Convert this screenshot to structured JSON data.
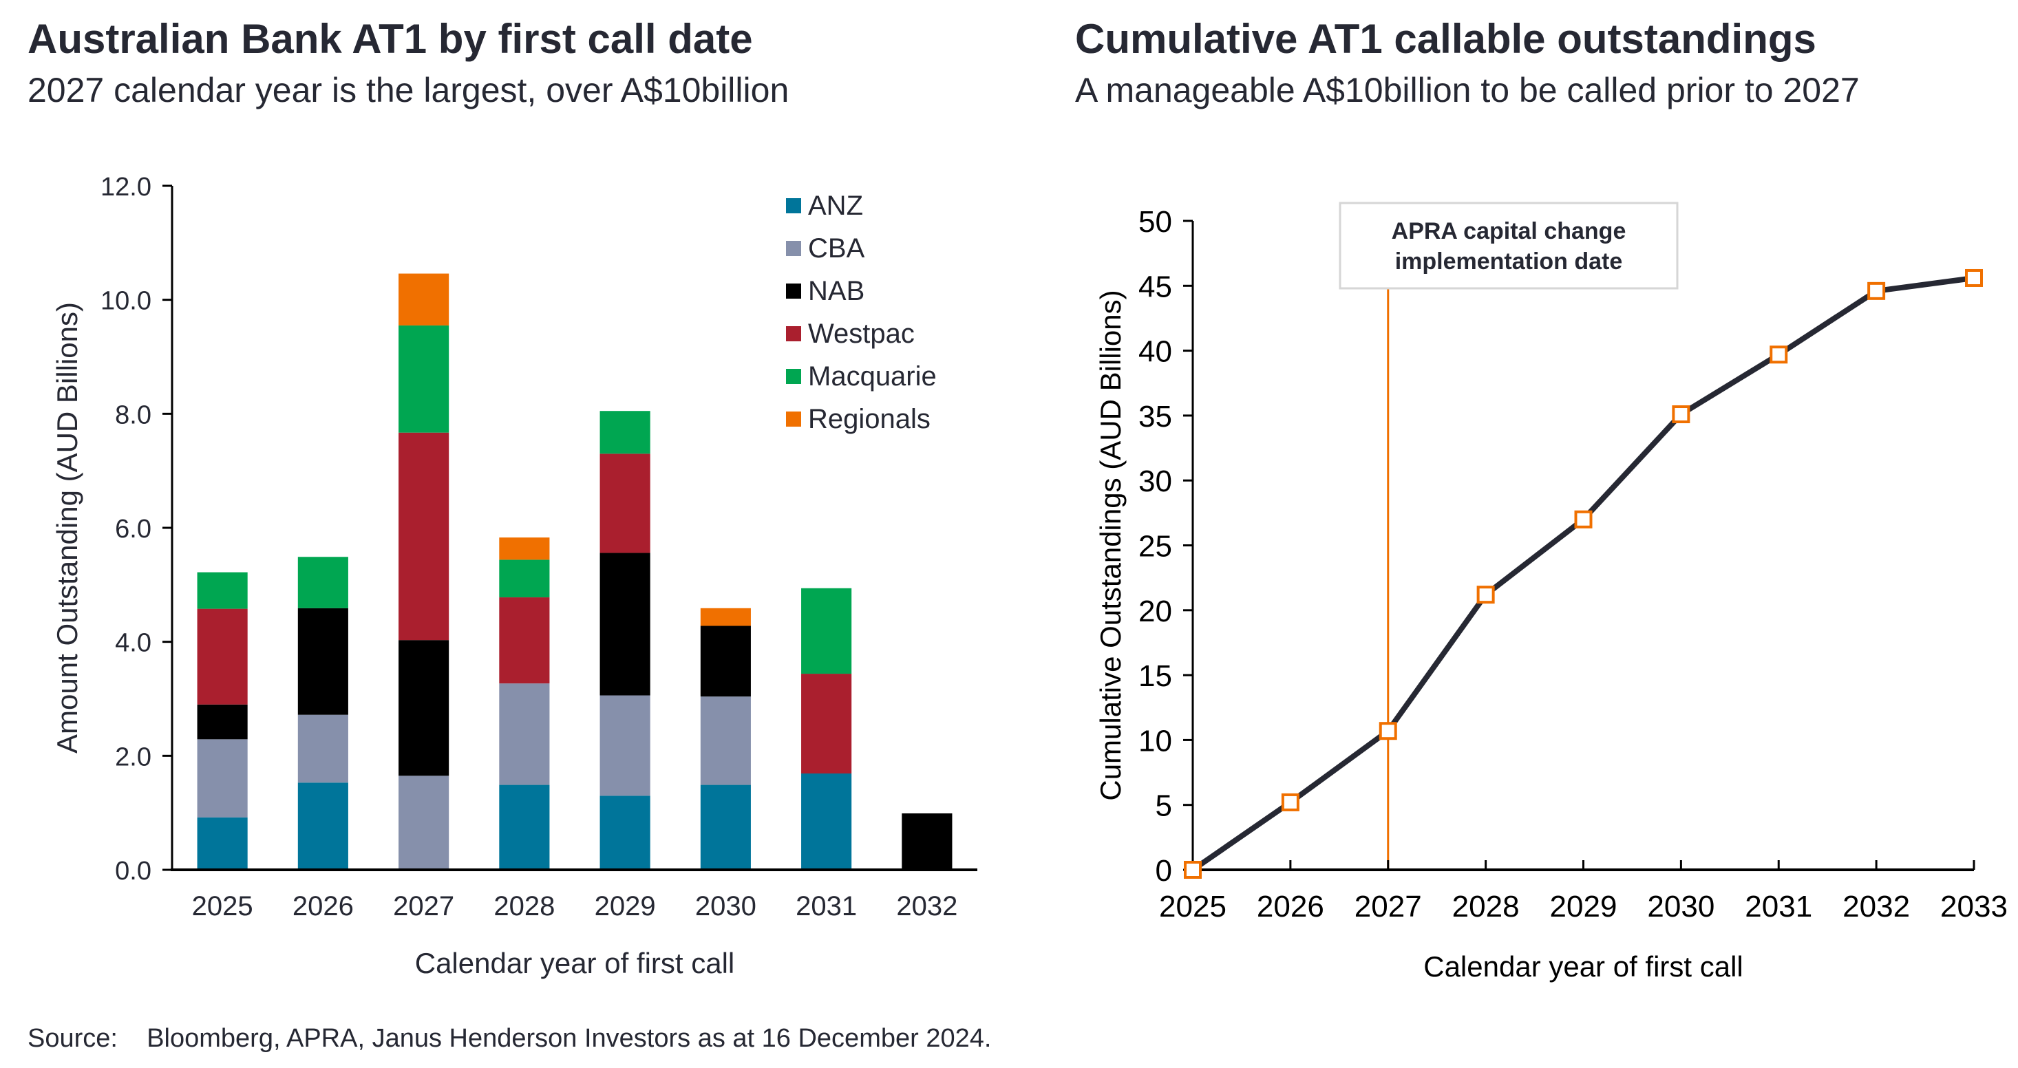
{
  "left": {
    "title": "Australian Bank AT1 by first call date",
    "subtitle": "2027 calendar year is the largest, over A$10billion"
  },
  "right": {
    "title": "Cumulative AT1 callable outstandings",
    "subtitle": "A manageable A$10billion to be called prior to 2027"
  },
  "source": "Source:    Bloomberg, APRA, Janus Henderson Investors as at 16 December 2024.",
  "chart_data": [
    {
      "type": "bar",
      "stacked": true,
      "title": "Australian Bank AT1 by first call date",
      "xlabel": "Calendar year of first call",
      "ylabel": "Amount Outstanding (AUD Billions)",
      "ylim": [
        0,
        12
      ],
      "yticks": [
        "0.0",
        "2.0",
        "4.0",
        "6.0",
        "8.0",
        "10.0",
        "12.0"
      ],
      "grid": false,
      "legend_position": "top-right",
      "categories": [
        "2025",
        "2026",
        "2027",
        "2028",
        "2029",
        "2030",
        "2031",
        "2032"
      ],
      "series": [
        {
          "name": "ANZ",
          "color": "#00759a",
          "values": [
            0.92,
            1.53,
            0.0,
            1.49,
            1.3,
            1.49,
            1.69,
            0.0
          ]
        },
        {
          "name": "CBA",
          "color": "#8690ab",
          "values": [
            1.37,
            1.19,
            1.65,
            1.78,
            1.76,
            1.55,
            0.0,
            0.0
          ]
        },
        {
          "name": "NAB",
          "color": "#000000",
          "values": [
            0.61,
            1.87,
            2.38,
            0.0,
            2.5,
            1.24,
            0.0,
            0.99
          ]
        },
        {
          "name": "Westpac",
          "color": "#aa1f2e",
          "values": [
            1.68,
            0.0,
            3.64,
            1.51,
            1.74,
            0.0,
            1.75,
            0.0
          ]
        },
        {
          "name": "Macquarie",
          "color": "#00a651",
          "values": [
            0.64,
            0.9,
            1.88,
            0.66,
            0.75,
            0.0,
            1.5,
            0.0
          ]
        },
        {
          "name": "Regionals",
          "color": "#f07000",
          "values": [
            0.0,
            0.0,
            0.91,
            0.39,
            0.0,
            0.31,
            0.0,
            0.0
          ]
        }
      ]
    },
    {
      "type": "line",
      "title": "Cumulative AT1 callable outstandings",
      "xlabel": "Calendar year of first call",
      "ylabel": "Cumulative Outstandings (AUD Billions)",
      "ylim": [
        0,
        50
      ],
      "yticks": [
        "0",
        "5",
        "10",
        "15",
        "20",
        "25",
        "30",
        "35",
        "40",
        "45",
        "50"
      ],
      "grid": false,
      "x": [
        "2025",
        "2026",
        "2027",
        "2028",
        "2029",
        "2030",
        "2031",
        "2032",
        "2033"
      ],
      "series": [
        {
          "name": "Cumulative outstandings",
          "color": "#262833",
          "marker_color": "#f07000",
          "values": [
            0,
            5.2,
            10.7,
            21.2,
            27.0,
            35.1,
            39.7,
            44.6,
            45.6
          ]
        }
      ],
      "annotation": {
        "text_line1": "APRA capital change",
        "text_line2": "implementation date",
        "x": "2027",
        "color": "#f07000"
      }
    }
  ]
}
